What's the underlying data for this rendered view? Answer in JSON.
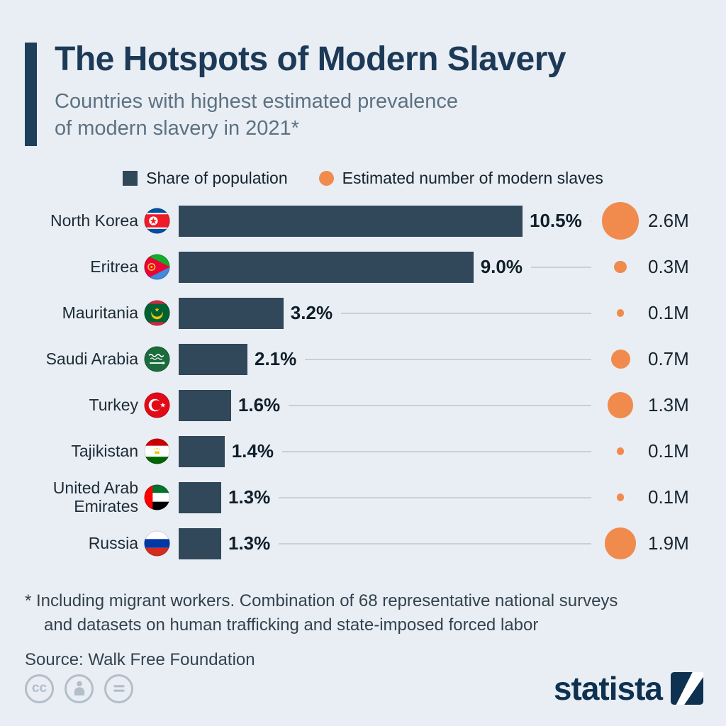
{
  "header": {
    "title": "The Hotspots of Modern Slavery",
    "subtitle_line1": "Countries with highest estimated prevalence",
    "subtitle_line2": "of modern slavery in 2021*"
  },
  "colors": {
    "background": "#e9eef4",
    "bar": "#31475a",
    "circle": "#f08b4d",
    "title": "#1c3a57",
    "subtitle": "#5d7181",
    "accent_bar": "#1e3f5a"
  },
  "chart_data": {
    "type": "bar",
    "orientation": "horizontal",
    "title": "The Hotspots of Modern Slavery",
    "subtitle": "Countries with highest estimated prevalence of modern slavery in 2021*",
    "categories": [
      "North Korea",
      "Eritrea",
      "Mauritania",
      "Saudi Arabia",
      "Turkey",
      "Tajikistan",
      "United Arab Emirates",
      "Russia"
    ],
    "flags": [
      "north-korea",
      "eritrea",
      "mauritania",
      "saudi-arabia",
      "turkey",
      "tajikistan",
      "uae",
      "russia"
    ],
    "series": [
      {
        "name": "Share of population",
        "unit": "%",
        "color": "#31475a",
        "values": [
          10.5,
          9.0,
          3.2,
          2.1,
          1.6,
          1.4,
          1.3,
          1.3
        ],
        "labels": [
          "10.5%",
          "9.0%",
          "3.2%",
          "2.1%",
          "1.6%",
          "1.4%",
          "1.3%",
          "1.3%"
        ]
      },
      {
        "name": "Estimated number of modern slaves",
        "unit": "M",
        "color": "#f08b4d",
        "values": [
          2.6,
          0.3,
          0.1,
          0.7,
          1.3,
          0.1,
          0.1,
          1.9
        ],
        "labels": [
          "2.6M",
          "0.3M",
          "0.1M",
          "0.7M",
          "1.3M",
          "0.1M",
          "0.1M",
          "1.9M"
        ]
      }
    ],
    "xlim_percent": [
      0,
      10.5
    ],
    "legend_position": "top",
    "grid": false
  },
  "footnote": {
    "line1": "* Including migrant workers. Combination of 68 representative national surveys",
    "line2": "and datasets on human trafficking and state-imposed forced labor"
  },
  "source": "Source: Walk Free Foundation",
  "footer": {
    "cc_text": "cc",
    "license_icons": [
      "cc-icon",
      "attribution-by-icon",
      "no-derivatives-icon"
    ],
    "logo_text": "statista"
  }
}
